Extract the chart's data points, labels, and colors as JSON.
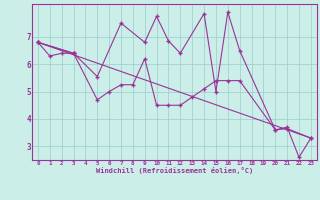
{
  "xlabel": "Windchill (Refroidissement éolien,°C)",
  "background_color": "#cceee8",
  "line_color": "#993399",
  "grid_color": "#99cccc",
  "line1": {
    "x": [
      0,
      1,
      2,
      3
    ],
    "y": [
      6.8,
      6.3,
      6.4,
      6.4
    ]
  },
  "line2": {
    "x": [
      0,
      3,
      5,
      6,
      7,
      8,
      9,
      10,
      11,
      12,
      13,
      14,
      15,
      16,
      17,
      20,
      21,
      23
    ],
    "y": [
      6.8,
      6.4,
      4.7,
      5.0,
      5.25,
      5.25,
      6.2,
      4.5,
      4.5,
      4.5,
      4.8,
      5.1,
      5.4,
      5.4,
      5.4,
      3.6,
      3.65,
      3.3
    ]
  },
  "line3": {
    "x": [
      0,
      3,
      5,
      7,
      9,
      10,
      11,
      12,
      14,
      15,
      16,
      17,
      20,
      21,
      22,
      23
    ],
    "y": [
      6.8,
      6.4,
      5.55,
      7.5,
      6.8,
      7.75,
      6.85,
      6.4,
      7.85,
      5.0,
      7.9,
      6.5,
      3.6,
      3.7,
      2.6,
      3.3
    ]
  },
  "trend_line": {
    "x": [
      0,
      23
    ],
    "y": [
      6.8,
      3.3
    ]
  },
  "ylim": [
    2.5,
    8.2
  ],
  "xlim": [
    -0.5,
    23.5
  ],
  "yticks": [
    3,
    4,
    5,
    6,
    7
  ],
  "xticks": [
    0,
    1,
    2,
    3,
    4,
    5,
    6,
    7,
    8,
    9,
    10,
    11,
    12,
    13,
    14,
    15,
    16,
    17,
    18,
    19,
    20,
    21,
    22,
    23
  ]
}
